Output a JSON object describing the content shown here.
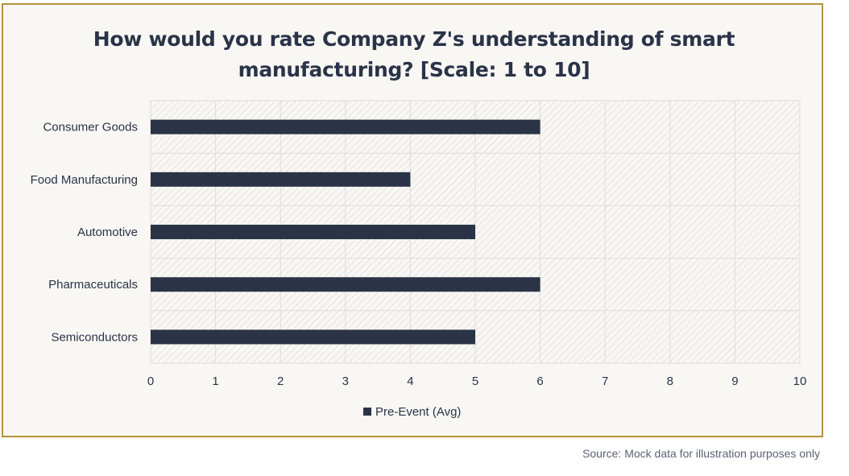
{
  "chart_data": {
    "type": "bar",
    "orientation": "horizontal",
    "title_lines": [
      "How would you rate Company Z's understanding of smart",
      "manufacturing? [Scale: 1 to 10]"
    ],
    "categories": [
      "Consumer Goods",
      "Food Manufacturing",
      "Automotive",
      "Pharmaceuticals",
      "Semiconductors"
    ],
    "series": [
      {
        "name": "Pre-Event (Avg)",
        "values": [
          6,
          4,
          5,
          6,
          5
        ]
      }
    ],
    "xlim": [
      0,
      10
    ],
    "xticks": [
      "0",
      "1",
      "2",
      "3",
      "4",
      "5",
      "6",
      "7",
      "8",
      "9",
      "10"
    ],
    "grid": true,
    "legend_position": "bottom",
    "colors": {
      "bar": "#2b3347",
      "border": "#b8923a",
      "background": "#f8f7f4",
      "grid": "#dcdcdc",
      "hatch": "#d6d6d6"
    }
  },
  "footer": {
    "source": "Source: Mock data for illustration purposes only"
  }
}
